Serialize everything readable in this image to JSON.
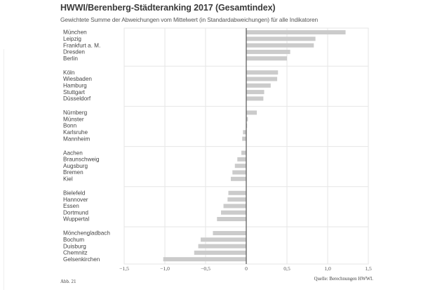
{
  "header": {
    "title": "HWWI/Berenberg-Städteranking 2017 (Gesamtindex)",
    "subtitle": "Gewichtete Summe der Abweichungen vom Mittelwert (in Standardabweichungen) für alle Indikatoren"
  },
  "footer": {
    "figure_no": "Abb. 21",
    "source": "Quelle: Berechnungen HWWI."
  },
  "colors": {
    "bar": "#cbcbcb",
    "zero_line": "#555555",
    "grid": "#e6e6e6"
  },
  "chart_data": {
    "type": "bar",
    "orientation": "horizontal",
    "title": "HWWI/Berenberg-Städteranking 2017 (Gesamtindex)",
    "subtitle": "Gewichtete Summe der Abweichungen vom Mittelwert (in Standardabweichungen) für alle Indikatoren",
    "xlabel": "",
    "ylabel": "",
    "xlim": [
      -1.5,
      1.5
    ],
    "xticks": [
      -1.5,
      -1.0,
      -0.5,
      0,
      0.5,
      1.0,
      1.5
    ],
    "xtick_labels": [
      "−1,5",
      "−1,0",
      "−0,5",
      "0",
      "0,5",
      "1,0",
      "1,5"
    ],
    "grid": true,
    "legend": "none",
    "groups": [
      {
        "categories": [
          "München",
          "Leipzig",
          "Frankfurt a. M.",
          "Dresden",
          "Berlin"
        ],
        "values": [
          1.22,
          0.85,
          0.83,
          0.54,
          0.5
        ]
      },
      {
        "categories": [
          "Köln",
          "Wiesbaden",
          "Hamburg",
          "Stuttgart",
          "Düsseldorf"
        ],
        "values": [
          0.39,
          0.38,
          0.3,
          0.22,
          0.21
        ]
      },
      {
        "categories": [
          "Nürnberg",
          "Münster",
          "Bonn",
          "Karlsruhe",
          "Mannheim"
        ],
        "values": [
          0.13,
          0.02,
          0.01,
          -0.04,
          -0.05
        ]
      },
      {
        "categories": [
          "Aachen",
          "Braunschweig",
          "Augsburg",
          "Bremen",
          "Kiel"
        ],
        "values": [
          -0.06,
          -0.11,
          -0.14,
          -0.17,
          -0.19
        ]
      },
      {
        "categories": [
          "Bielefeld",
          "Hannover",
          "Essen",
          "Dortmund",
          "Wuppertal"
        ],
        "values": [
          -0.22,
          -0.23,
          -0.28,
          -0.31,
          -0.36
        ]
      },
      {
        "categories": [
          "Mönchengladbach",
          "Bochum",
          "Duisburg",
          "Chemnitz",
          "Gelsenkirchen"
        ],
        "values": [
          -0.41,
          -0.56,
          -0.59,
          -0.64,
          -1.02
        ]
      }
    ]
  }
}
